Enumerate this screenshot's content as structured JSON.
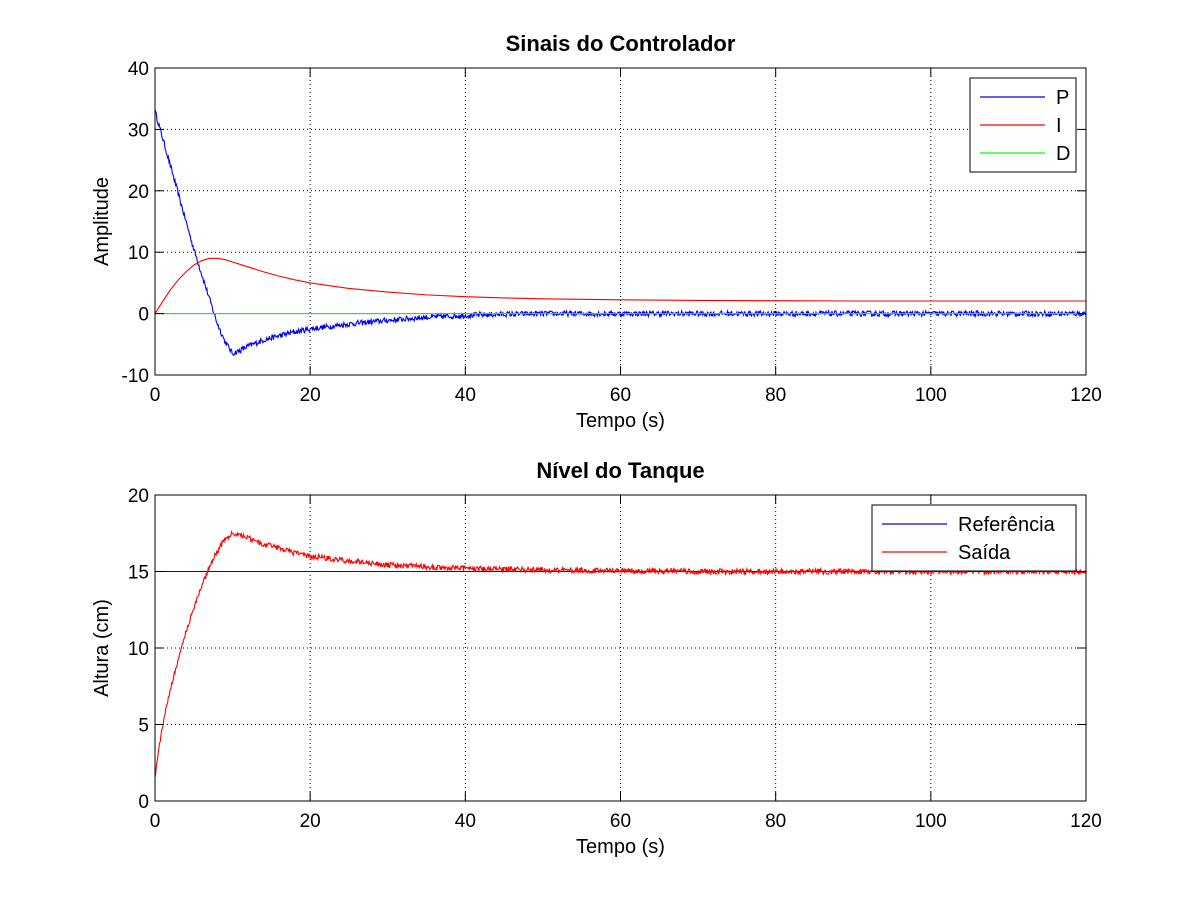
{
  "chart_data": [
    {
      "type": "line",
      "title": "Sinais do Controlador",
      "xlabel": "Tempo (s)",
      "ylabel": "Amplitude",
      "xlim": [
        0,
        120
      ],
      "ylim": [
        -10,
        40
      ],
      "xticks": [
        0,
        20,
        40,
        60,
        80,
        100,
        120
      ],
      "yticks": [
        -10,
        0,
        10,
        20,
        30,
        40
      ],
      "grid": true,
      "legend_position": "top-right",
      "series": [
        {
          "name": "P",
          "color": "#0000ff",
          "noise": true,
          "points": [
            [
              0,
              33
            ],
            [
              1,
              28.5
            ],
            [
              2,
              24
            ],
            [
              3,
              19.5
            ],
            [
              4,
              15
            ],
            [
              5,
              10.5
            ],
            [
              6,
              6.5
            ],
            [
              7,
              2.5
            ],
            [
              8,
              -1.5
            ],
            [
              9,
              -4.5
            ],
            [
              10,
              -6.5
            ],
            [
              11,
              -6
            ],
            [
              12,
              -5.3
            ],
            [
              14,
              -4.3
            ],
            [
              16,
              -3.6
            ],
            [
              18,
              -3
            ],
            [
              20,
              -2.5
            ],
            [
              25,
              -1.7
            ],
            [
              30,
              -1.1
            ],
            [
              35,
              -0.6
            ],
            [
              40,
              -0.3
            ],
            [
              45,
              -0.1
            ],
            [
              50,
              0
            ],
            [
              60,
              0
            ],
            [
              70,
              0
            ],
            [
              80,
              0
            ],
            [
              90,
              0
            ],
            [
              100,
              0
            ],
            [
              110,
              0
            ],
            [
              120,
              0
            ]
          ]
        },
        {
          "name": "I",
          "color": "#ff0000",
          "noise": false,
          "points": [
            [
              0,
              0
            ],
            [
              1,
              2
            ],
            [
              2,
              3.9
            ],
            [
              3,
              5.5
            ],
            [
              4,
              6.8
            ],
            [
              5,
              7.9
            ],
            [
              6,
              8.6
            ],
            [
              7,
              9
            ],
            [
              8,
              9
            ],
            [
              9,
              8.8
            ],
            [
              10,
              8.4
            ],
            [
              12,
              7.6
            ],
            [
              14,
              6.8
            ],
            [
              16,
              6.1
            ],
            [
              18,
              5.5
            ],
            [
              20,
              5
            ],
            [
              25,
              4.1
            ],
            [
              30,
              3.5
            ],
            [
              35,
              3.05
            ],
            [
              40,
              2.75
            ],
            [
              45,
              2.55
            ],
            [
              50,
              2.4
            ],
            [
              60,
              2.25
            ],
            [
              70,
              2.15
            ],
            [
              80,
              2.1
            ],
            [
              90,
              2.05
            ],
            [
              100,
              2.05
            ],
            [
              110,
              2.05
            ],
            [
              120,
              2.05
            ]
          ]
        },
        {
          "name": "D",
          "color": "#00ff00",
          "noise": false,
          "points": [
            [
              0,
              0
            ],
            [
              120,
              0
            ]
          ]
        }
      ]
    },
    {
      "type": "line",
      "title": "Nível do Tanque",
      "xlabel": "Tempo (s)",
      "ylabel": "Altura (cm)",
      "xlim": [
        0,
        120
      ],
      "ylim": [
        0,
        20
      ],
      "xticks": [
        0,
        20,
        40,
        60,
        80,
        100,
        120
      ],
      "yticks": [
        0,
        5,
        10,
        15,
        20
      ],
      "grid": true,
      "legend_position": "top-right",
      "series": [
        {
          "name": "Referência",
          "color": "#0000ff",
          "noise": false,
          "points": [
            [
              0,
              15
            ],
            [
              120,
              15
            ]
          ]
        },
        {
          "name": "Saída",
          "color": "#ff0000",
          "noise": true,
          "points": [
            [
              0,
              1.7
            ],
            [
              1,
              5
            ],
            [
              2,
              7.3
            ],
            [
              3,
              9.3
            ],
            [
              4,
              11.1
            ],
            [
              5,
              12.6
            ],
            [
              6,
              14
            ],
            [
              7,
              15.3
            ],
            [
              8,
              16.3
            ],
            [
              9,
              17.1
            ],
            [
              10,
              17.5
            ],
            [
              11,
              17.4
            ],
            [
              12,
              17.2
            ],
            [
              14,
              16.8
            ],
            [
              16,
              16.5
            ],
            [
              18,
              16.2
            ],
            [
              20,
              16
            ],
            [
              25,
              15.7
            ],
            [
              30,
              15.45
            ],
            [
              35,
              15.3
            ],
            [
              40,
              15.2
            ],
            [
              45,
              15.15
            ],
            [
              50,
              15.1
            ],
            [
              60,
              15.05
            ],
            [
              70,
              15
            ],
            [
              80,
              15
            ],
            [
              90,
              15
            ],
            [
              100,
              15
            ],
            [
              110,
              15
            ],
            [
              120,
              15
            ]
          ]
        }
      ]
    }
  ]
}
